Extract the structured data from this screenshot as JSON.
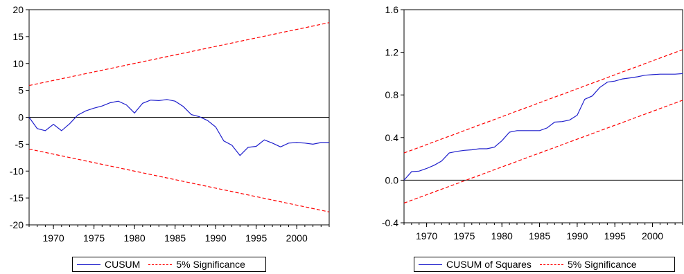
{
  "colors": {
    "series": "#1f1fcc",
    "bounds": "#ff0000",
    "zero": "#000000"
  },
  "chart_data": [
    {
      "type": "line",
      "xlim": [
        1967,
        2004
      ],
      "ylim": [
        -20,
        20
      ],
      "x_ticks": [
        1970,
        1975,
        1980,
        1985,
        1990,
        1995,
        2000
      ],
      "y_ticks": [
        -20,
        -15,
        -10,
        -5,
        0,
        5,
        10,
        15,
        20
      ],
      "y_tick_labels": [
        "-20",
        "-15",
        "-10",
        "-5",
        "0",
        "5",
        "10",
        "15",
        "20"
      ],
      "zero_line": 0,
      "series": [
        {
          "name": "CUSUM",
          "x": [
            1967,
            1968,
            1969,
            1970,
            1971,
            1972,
            1973,
            1974,
            1975,
            1976,
            1977,
            1978,
            1979,
            1980,
            1981,
            1982,
            1983,
            1984,
            1985,
            1986,
            1987,
            1988,
            1989,
            1990,
            1991,
            1992,
            1993,
            1994,
            1995,
            1996,
            1997,
            1998,
            1999,
            2000,
            2001,
            2002,
            2003,
            2004
          ],
          "values": [
            0.0,
            -2.1,
            -2.5,
            -1.3,
            -2.5,
            -1.2,
            0.4,
            1.2,
            1.7,
            2.1,
            2.7,
            3.0,
            2.3,
            0.8,
            2.6,
            3.2,
            3.1,
            3.3,
            3.0,
            2.0,
            0.5,
            0.1,
            -0.6,
            -1.8,
            -4.4,
            -5.2,
            -7.1,
            -5.6,
            -5.4,
            -4.2,
            -4.8,
            -5.5,
            -4.8,
            -4.7,
            -4.8,
            -5.0,
            -4.7,
            -4.7
          ]
        },
        {
          "name": "5% Significance",
          "x": [
            1967,
            2004
          ],
          "values": [
            5.9,
            17.6
          ]
        },
        {
          "name": "5% Significance",
          "x": [
            1967,
            2004
          ],
          "values": [
            -5.9,
            -17.6
          ]
        }
      ]
    },
    {
      "type": "line",
      "xlim": [
        1967,
        2004
      ],
      "ylim": [
        -0.4,
        1.6
      ],
      "x_ticks": [
        1970,
        1975,
        1980,
        1985,
        1990,
        1995,
        2000
      ],
      "y_ticks": [
        -0.4,
        0.0,
        0.4,
        0.8,
        1.2,
        1.6
      ],
      "y_tick_labels": [
        "-0.4",
        "0.0",
        "0.4",
        "0.8",
        "1.2",
        "1.6"
      ],
      "zero_line": 0,
      "series": [
        {
          "name": "CUSUM of Squares",
          "x": [
            1967,
            1968,
            1969,
            1970,
            1971,
            1972,
            1973,
            1974,
            1975,
            1976,
            1977,
            1978,
            1979,
            1980,
            1981,
            1982,
            1983,
            1984,
            1985,
            1986,
            1987,
            1988,
            1989,
            1990,
            1991,
            1992,
            1993,
            1994,
            1995,
            1996,
            1997,
            1998,
            1999,
            2000,
            2001,
            2002,
            2003,
            2004
          ],
          "values": [
            0.0,
            0.08,
            0.085,
            0.11,
            0.14,
            0.18,
            0.255,
            0.27,
            0.28,
            0.285,
            0.295,
            0.295,
            0.31,
            0.37,
            0.45,
            0.465,
            0.465,
            0.465,
            0.465,
            0.49,
            0.545,
            0.55,
            0.565,
            0.61,
            0.76,
            0.79,
            0.87,
            0.92,
            0.93,
            0.95,
            0.96,
            0.97,
            0.985,
            0.99,
            0.995,
            0.995,
            0.995,
            1.0
          ]
        },
        {
          "name": "5% Significance",
          "x": [
            1967,
            2004
          ],
          "values": [
            0.255,
            1.225
          ]
        },
        {
          "name": "5% Significance",
          "x": [
            1967,
            2004
          ],
          "values": [
            -0.215,
            0.75
          ]
        }
      ]
    }
  ],
  "legends": [
    {
      "items": [
        "CUSUM",
        "5% Significance"
      ]
    },
    {
      "items": [
        "CUSUM of Squares",
        "5% Significance"
      ]
    }
  ]
}
